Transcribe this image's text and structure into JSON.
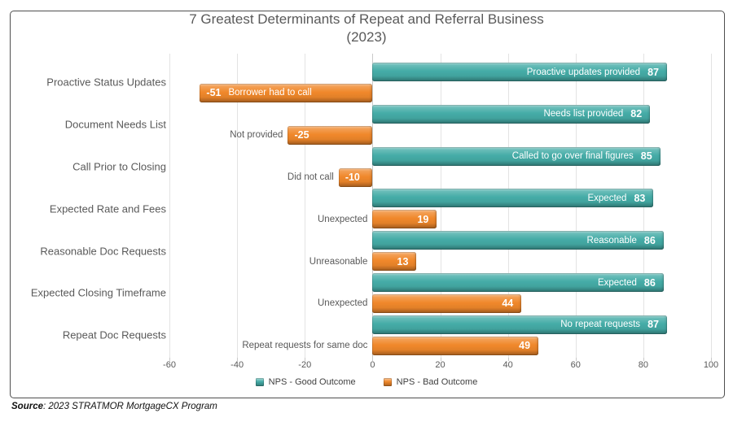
{
  "title": {
    "line1": "7 Greatest Determinants of Repeat and Referral Business",
    "line2": "(2023)"
  },
  "source": {
    "label": "Source",
    "text": ": 2023 STRATMOR MortgageCX Program"
  },
  "colors": {
    "good": "#45ACA7",
    "bad": "#F0882B",
    "title_text": "#595959",
    "axis_text": "#595959",
    "gridline": "#E3E3E3",
    "border": "#4F4F4F"
  },
  "chart_data": {
    "type": "bar",
    "orientation": "horizontal",
    "title": "7 Greatest Determinants of Repeat and Referral Business (2023)",
    "categories": [
      "Proactive Status Updates",
      "Document Needs List",
      "Call Prior to Closing",
      "Expected Rate and Fees",
      "Reasonable Doc Requests",
      "Expected Closing Timeframe",
      "Repeat Doc Requests"
    ],
    "series": [
      {
        "name": "NPS - Good Outcome",
        "color": "#45ACA7",
        "values": [
          87,
          82,
          85,
          83,
          86,
          86,
          87
        ],
        "bar_labels": [
          "Proactive updates provided",
          "Needs list provided",
          "Called to go over final figures",
          "Expected",
          "Reasonable",
          "Expected",
          "No repeat requests"
        ],
        "label_placement": [
          "inside",
          "inside",
          "inside",
          "inside",
          "inside",
          "inside",
          "inside"
        ]
      },
      {
        "name": "NPS - Bad Outcome",
        "color": "#F0882B",
        "values": [
          -51,
          -25,
          -10,
          19,
          13,
          44,
          49
        ],
        "bar_labels": [
          "Borrower had to call",
          "Not provided",
          "Did not call",
          "Unexpected",
          "Unreasonable",
          "Unexpected",
          "Repeat requests for same doc"
        ],
        "label_placement": [
          "inside",
          "outside",
          "outside",
          "outside",
          "outside",
          "outside",
          "outside"
        ]
      }
    ],
    "xlim": [
      -60,
      100
    ],
    "x_ticks": [
      -60,
      -40,
      -20,
      0,
      20,
      40,
      60,
      80,
      100
    ],
    "grid": "vertical",
    "legend_position": "bottom"
  }
}
